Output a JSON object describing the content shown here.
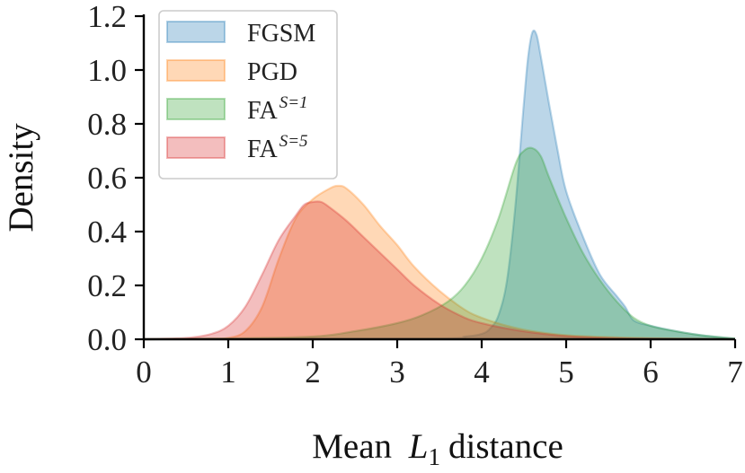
{
  "chart_data": {
    "type": "area",
    "title": "",
    "xlabel": "Mean",
    "xlabel_math": "L",
    "xlabel_sub": "1",
    "xlabel_suffix": "distance",
    "ylabel": "Density",
    "xlim": [
      0,
      7
    ],
    "ylim": [
      0,
      1.2
    ],
    "xticks": [
      0,
      1,
      2,
      3,
      4,
      5,
      6,
      7
    ],
    "xtick_labels": [
      "0",
      "1",
      "2",
      "3",
      "4",
      "5",
      "6",
      "7"
    ],
    "yticks": [
      0,
      0.2,
      0.4,
      0.6,
      0.8,
      1.0,
      1.2
    ],
    "ytick_labels": [
      "0.0",
      "0.2",
      "0.4",
      "0.6",
      "0.8",
      "1.0",
      "1.2"
    ],
    "grid": false,
    "legend_position": "top-left",
    "series": [
      {
        "name": "FGSM",
        "legend_base": "FGSM",
        "legend_sup": "",
        "color": "#1f77b4",
        "x": [
          0,
          3.4,
          3.8,
          4.0,
          4.1,
          4.2,
          4.3,
          4.4,
          4.5,
          4.55,
          4.6,
          4.65,
          4.7,
          4.8,
          4.9,
          5.0,
          5.2,
          5.4,
          5.6,
          5.7,
          5.8,
          6.0,
          6.3,
          6.6,
          7.0
        ],
        "y": [
          0,
          0.003,
          0.01,
          0.02,
          0.04,
          0.09,
          0.22,
          0.5,
          0.88,
          1.05,
          1.14,
          1.13,
          1.05,
          0.87,
          0.7,
          0.55,
          0.38,
          0.24,
          0.16,
          0.12,
          0.07,
          0.05,
          0.03,
          0.015,
          0.002
        ]
      },
      {
        "name": "PGD",
        "legend_base": "PGD",
        "legend_sup": "",
        "color": "#ff7f0e",
        "x": [
          0,
          0.8,
          1.0,
          1.2,
          1.4,
          1.6,
          1.8,
          2.0,
          2.2,
          2.3,
          2.4,
          2.6,
          2.8,
          3.0,
          3.2,
          3.5,
          3.8,
          4.0,
          4.3,
          4.6,
          5.0,
          5.5,
          6.0,
          6.5,
          7.0
        ],
        "y": [
          0,
          0.002,
          0.005,
          0.03,
          0.12,
          0.3,
          0.45,
          0.52,
          0.56,
          0.57,
          0.56,
          0.5,
          0.42,
          0.35,
          0.27,
          0.18,
          0.11,
          0.08,
          0.05,
          0.03,
          0.015,
          0.008,
          0.004,
          0.002,
          0
        ]
      },
      {
        "name": "FA^{S=1}",
        "legend_base": "FA",
        "legend_sup": "S=1",
        "color": "#2ca02c",
        "x": [
          0,
          1.0,
          2.0,
          2.5,
          3.0,
          3.3,
          3.6,
          3.8,
          4.0,
          4.2,
          4.4,
          4.5,
          4.6,
          4.7,
          4.8,
          5.0,
          5.2,
          5.4,
          5.6,
          5.8,
          6.0,
          6.3,
          6.6,
          7.0
        ],
        "y": [
          0,
          0.003,
          0.01,
          0.03,
          0.06,
          0.09,
          0.14,
          0.2,
          0.3,
          0.45,
          0.65,
          0.7,
          0.71,
          0.68,
          0.6,
          0.45,
          0.32,
          0.22,
          0.14,
          0.08,
          0.05,
          0.03,
          0.015,
          0.003
        ]
      },
      {
        "name": "FA^{S=5}",
        "legend_base": "FA",
        "legend_sup": "S=5",
        "color": "#d62728",
        "x": [
          0,
          0.5,
          0.8,
          1.0,
          1.2,
          1.4,
          1.6,
          1.8,
          1.9,
          2.0,
          2.1,
          2.2,
          2.4,
          2.6,
          2.8,
          3.0,
          3.2,
          3.5,
          3.8,
          4.0,
          4.3,
          4.6,
          5.0,
          5.5,
          6.0,
          7.0
        ],
        "y": [
          0,
          0.005,
          0.02,
          0.05,
          0.12,
          0.24,
          0.37,
          0.46,
          0.5,
          0.51,
          0.51,
          0.49,
          0.44,
          0.38,
          0.32,
          0.26,
          0.2,
          0.13,
          0.08,
          0.06,
          0.04,
          0.025,
          0.012,
          0.005,
          0.002,
          0
        ]
      }
    ]
  }
}
